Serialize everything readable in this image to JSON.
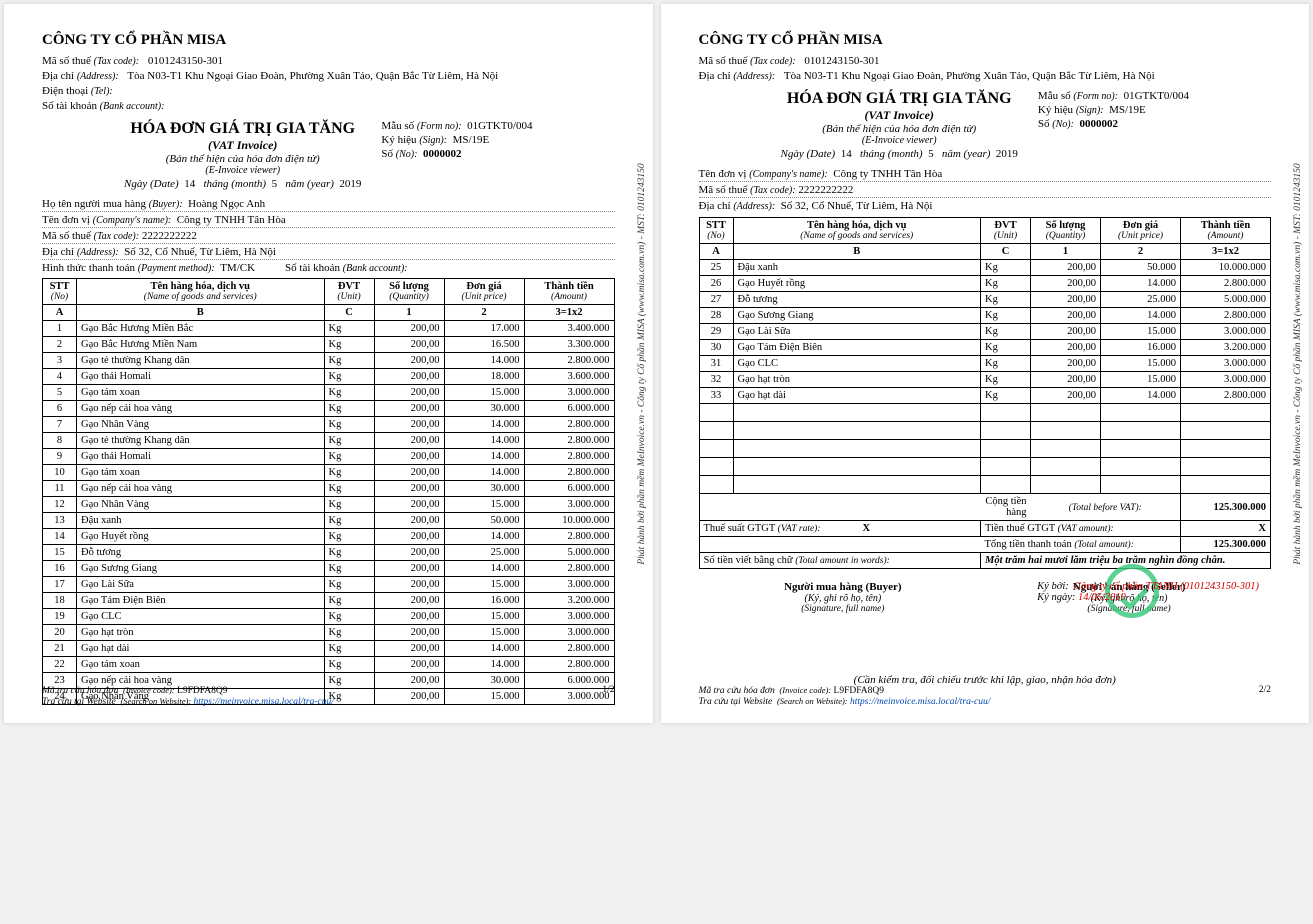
{
  "company": {
    "name": "CÔNG TY CỔ PHẦN MISA",
    "tax_label": "Mã số thuế",
    "tax_sub": "(Tax code):",
    "tax_value": "0101243150-301",
    "addr_label": "Địa chỉ",
    "addr_sub": "(Address):",
    "addr_value": "Tòa N03-T1 Khu Ngoại Giao Đoàn, Phường Xuân Tảo, Quận Bắc Từ Liêm, Hà Nội",
    "tel_label": "Điện thoại",
    "tel_sub": "(Tel):",
    "bank_label": "Số tài khoản",
    "bank_sub": "(Bank account):"
  },
  "title": {
    "t1": "HÓA ĐƠN GIÁ TRỊ GIA TĂNG",
    "t2": "(VAT Invoice)",
    "t3": "(Bản thể hiện của hóa đơn điện tử)",
    "t4": "(E-Invoice viewer)",
    "form_label": "Mẫu số",
    "form_sub": "(Form no):",
    "form_value": "01GTKT0/004",
    "sign_label": "Ký hiệu",
    "sign_sub": "(Sign):",
    "sign_value": "MS/19E",
    "no_label": "Số",
    "no_sub": "(No):",
    "no_value": "0000002",
    "date_label": "Ngày",
    "date_sub": "(Date)",
    "day": "14",
    "month_label": "tháng",
    "month_sub": "(month)",
    "month": "5",
    "year_label": "năm",
    "year_sub": "(year)",
    "year": "2019"
  },
  "buyer": {
    "name_label": "Họ tên người mua hàng",
    "name_sub": "(Buyer):",
    "name_value": "Hoàng Ngọc Anh",
    "company_label": "Tên đơn vị",
    "company_sub": "(Company's name):",
    "company_value": "Công ty TNHH Tân Hòa",
    "tax_label": "Mã số thuế",
    "tax_sub": "(Tax code):",
    "tax_value": "2222222222",
    "addr_label": "Địa chỉ",
    "addr_sub": "(Address):",
    "addr_value": "Số 32, Cổ Nhuế, Từ Liêm, Hà Nội",
    "pay_label": "Hình thức thanh toán",
    "pay_sub": "(Payment method):",
    "pay_value": "TM/CK",
    "bank_label": "Số tài khoản",
    "bank_sub": "(Bank account):"
  },
  "table": {
    "headers": {
      "stt": "STT",
      "stt_sub": "(No)",
      "name": "Tên hàng hóa, dịch vụ",
      "name_sub": "(Name of goods and services)",
      "dvt": "ĐVT",
      "dvt_sub": "(Unit)",
      "qty": "Số lượng",
      "qty_sub": "(Quantity)",
      "price": "Đơn giá",
      "price_sub": "(Unit price)",
      "amt": "Thành tiền",
      "amt_sub": "(Amount)"
    },
    "formula": {
      "a": "A",
      "b": "B",
      "c": "C",
      "q": "1",
      "p": "2",
      "t": "3=1x2"
    },
    "rows_p1": [
      {
        "stt": "1",
        "name": "Gạo Bắc Hương Miền Bắc",
        "dvt": "Kg",
        "qty": "200,00",
        "price": "17.000",
        "amt": "3.400.000"
      },
      {
        "stt": "2",
        "name": "Gạo Bắc Hương Miền Nam",
        "dvt": "Kg",
        "qty": "200,00",
        "price": "16.500",
        "amt": "3.300.000"
      },
      {
        "stt": "3",
        "name": "Gạo tẻ thường Khang dân",
        "dvt": "Kg",
        "qty": "200,00",
        "price": "14.000",
        "amt": "2.800.000"
      },
      {
        "stt": "4",
        "name": "Gạo thái Homali",
        "dvt": "Kg",
        "qty": "200,00",
        "price": "18.000",
        "amt": "3.600.000"
      },
      {
        "stt": "5",
        "name": "Gạo tám xoan",
        "dvt": "Kg",
        "qty": "200,00",
        "price": "15.000",
        "amt": "3.000.000"
      },
      {
        "stt": "6",
        "name": "Gạo nếp cải hoa vàng",
        "dvt": "Kg",
        "qty": "200,00",
        "price": "30.000",
        "amt": "6.000.000"
      },
      {
        "stt": "7",
        "name": "Gạo Nhân Vàng",
        "dvt": "Kg",
        "qty": "200,00",
        "price": "14.000",
        "amt": "2.800.000"
      },
      {
        "stt": "8",
        "name": "Gạo tẻ thường Khang dân",
        "dvt": "Kg",
        "qty": "200,00",
        "price": "14.000",
        "amt": "2.800.000"
      },
      {
        "stt": "9",
        "name": "Gạo thái Homali",
        "dvt": "Kg",
        "qty": "200,00",
        "price": "14.000",
        "amt": "2.800.000"
      },
      {
        "stt": "10",
        "name": "Gạo tám xoan",
        "dvt": "Kg",
        "qty": "200,00",
        "price": "14.000",
        "amt": "2.800.000"
      },
      {
        "stt": "11",
        "name": "Gạo nếp cải hoa vàng",
        "dvt": "Kg",
        "qty": "200,00",
        "price": "30.000",
        "amt": "6.000.000"
      },
      {
        "stt": "12",
        "name": "Gạo Nhân Vàng",
        "dvt": "Kg",
        "qty": "200,00",
        "price": "15.000",
        "amt": "3.000.000"
      },
      {
        "stt": "13",
        "name": "Đậu xanh",
        "dvt": "Kg",
        "qty": "200,00",
        "price": "50.000",
        "amt": "10.000.000"
      },
      {
        "stt": "14",
        "name": "Gạo Huyết rồng",
        "dvt": "Kg",
        "qty": "200,00",
        "price": "14.000",
        "amt": "2.800.000"
      },
      {
        "stt": "15",
        "name": "Đỗ tương",
        "dvt": "Kg",
        "qty": "200,00",
        "price": "25.000",
        "amt": "5.000.000"
      },
      {
        "stt": "16",
        "name": "Gạo Sương Giang",
        "dvt": "Kg",
        "qty": "200,00",
        "price": "14.000",
        "amt": "2.800.000"
      },
      {
        "stt": "17",
        "name": "Gạo Lài Sữa",
        "dvt": "Kg",
        "qty": "200,00",
        "price": "15.000",
        "amt": "3.000.000"
      },
      {
        "stt": "18",
        "name": "Gạo Tám Điện Biên",
        "dvt": "Kg",
        "qty": "200,00",
        "price": "16.000",
        "amt": "3.200.000"
      },
      {
        "stt": "19",
        "name": "Gạo CLC",
        "dvt": "Kg",
        "qty": "200,00",
        "price": "15.000",
        "amt": "3.000.000"
      },
      {
        "stt": "20",
        "name": "Gạo hạt tròn",
        "dvt": "Kg",
        "qty": "200,00",
        "price": "15.000",
        "amt": "3.000.000"
      },
      {
        "stt": "21",
        "name": "Gạo hạt dài",
        "dvt": "Kg",
        "qty": "200,00",
        "price": "14.000",
        "amt": "2.800.000"
      },
      {
        "stt": "22",
        "name": "Gạo tám xoan",
        "dvt": "Kg",
        "qty": "200,00",
        "price": "14.000",
        "amt": "2.800.000"
      },
      {
        "stt": "23",
        "name": "Gạo nếp cải hoa vàng",
        "dvt": "Kg",
        "qty": "200,00",
        "price": "30.000",
        "amt": "6.000.000"
      },
      {
        "stt": "24",
        "name": "Gạo Nhân Vàng",
        "dvt": "Kg",
        "qty": "200,00",
        "price": "15.000",
        "amt": "3.000.000"
      }
    ],
    "rows_p2": [
      {
        "stt": "25",
        "name": "Đậu xanh",
        "dvt": "Kg",
        "qty": "200,00",
        "price": "50.000",
        "amt": "10.000.000"
      },
      {
        "stt": "26",
        "name": "Gạo Huyết rồng",
        "dvt": "Kg",
        "qty": "200,00",
        "price": "14.000",
        "amt": "2.800.000"
      },
      {
        "stt": "27",
        "name": "Đỗ tương",
        "dvt": "Kg",
        "qty": "200,00",
        "price": "25.000",
        "amt": "5.000.000"
      },
      {
        "stt": "28",
        "name": "Gạo Sương Giang",
        "dvt": "Kg",
        "qty": "200,00",
        "price": "14.000",
        "amt": "2.800.000"
      },
      {
        "stt": "29",
        "name": "Gạo Lài Sữa",
        "dvt": "Kg",
        "qty": "200,00",
        "price": "15.000",
        "amt": "3.000.000"
      },
      {
        "stt": "30",
        "name": "Gạo Tám Điện Biên",
        "dvt": "Kg",
        "qty": "200,00",
        "price": "16.000",
        "amt": "3.200.000"
      },
      {
        "stt": "31",
        "name": "Gạo CLC",
        "dvt": "Kg",
        "qty": "200,00",
        "price": "15.000",
        "amt": "3.000.000"
      },
      {
        "stt": "32",
        "name": "Gạo hạt tròn",
        "dvt": "Kg",
        "qty": "200,00",
        "price": "15.000",
        "amt": "3.000.000"
      },
      {
        "stt": "33",
        "name": "Gạo hạt dài",
        "dvt": "Kg",
        "qty": "200,00",
        "price": "14.000",
        "amt": "2.800.000"
      }
    ]
  },
  "summary": {
    "subtotal_label": "Cộng tiền hàng",
    "subtotal_sub": "(Total before VAT):",
    "subtotal_value": "125.300.000",
    "vatrate_label": "Thuế suất GTGT",
    "vatrate_sub": "(VAT rate):",
    "vatrate_value": "X",
    "vatamt_label": "Tiền thuế GTGT",
    "vatamt_sub": "(VAT amount):",
    "vatamt_value": "X",
    "total_label": "Tổng tiền thanh toán",
    "total_sub": "(Total amount):",
    "total_value": "125.300.000",
    "words_label": "Số tiền viết bằng chữ",
    "words_sub": "(Total amount in words):",
    "words_value": "Một trăm hai mươi lăm triệu ba trăm nghìn đồng chẵn."
  },
  "sign": {
    "buyer_t": "Người mua hàng (Buyer)",
    "seller_t": "Người bán hàng (Seller)",
    "line2": "(Ký, ghi rõ họ, tên)",
    "line3": "(Signature, full name)",
    "stamp_kyboi": "Ký bởi:",
    "stamp_name": "Công ty cổ phần TTANH (0101243150-301)",
    "stamp_kyngay": "Ký ngày:",
    "stamp_date": "14/05/2019",
    "note": "(Cần kiểm tra, đối chiếu trước khi lập, giao, nhận hóa đơn)"
  },
  "footer": {
    "code_label": "Mã tra cứu hóa đơn",
    "code_sub": "(Invoice code):",
    "code_value": "L9FDFA8Q9",
    "search_label": "Tra cứu tại Website",
    "search_sub": "(Search on Website):",
    "search_link": "https://meinvoice.misa.local/tra-cuu/",
    "page1": "1/2",
    "page2": "2/2",
    "side": "Phát hành bởi phần mềm MeInvoice.vn - Công ty Cổ phần MISA (www.misa.com.vn) - MST: 0101243150"
  }
}
